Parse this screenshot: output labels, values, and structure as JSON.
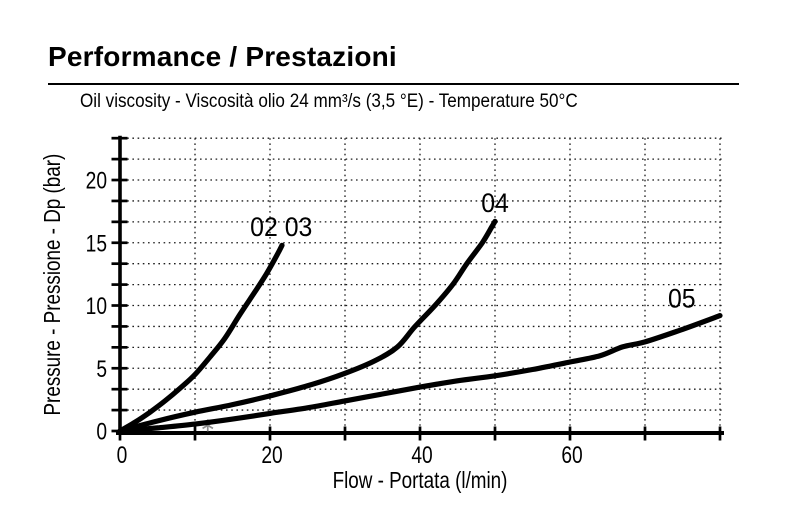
{
  "header": {
    "title": "Performance / Prestazioni",
    "subtitle": "Oil viscosity - Viscosità olio 24 mm³/s (3,5 °E) - Temperature 50°C"
  },
  "chart_data": {
    "type": "line",
    "title": "Performance / Prestazioni",
    "subtitle": "Oil viscosity - Viscosità olio 24 mm³/s (3,5 °E) - Temperature 50°C",
    "xlabel": "Flow - Portata (l/min)",
    "ylabel": "Pressure - Pressione - Dp (bar)",
    "xlim": [
      0,
      80
    ],
    "ylim": [
      0,
      23.333
    ],
    "x_major_ticks": [
      0,
      20,
      40,
      60
    ],
    "x_minor_step": 10,
    "y_major_ticks": [
      0,
      5,
      10,
      15,
      20
    ],
    "y_minor_step": 1.6667,
    "grid": "dotted",
    "grid_color": "#1c1c1c",
    "line_color": "#000000",
    "series": [
      {
        "name": "02 03",
        "label": "02 03",
        "label_pos": [
          21.5,
          16.3
        ],
        "points": [
          [
            0,
            0
          ],
          [
            2,
            0.7
          ],
          [
            4,
            1.5
          ],
          [
            6,
            2.4
          ],
          [
            8,
            3.4
          ],
          [
            10,
            4.5
          ],
          [
            12,
            5.9
          ],
          [
            14,
            7.4
          ],
          [
            16,
            9.3
          ],
          [
            18,
            11.1
          ],
          [
            19.5,
            12.5
          ],
          [
            21,
            14.1
          ],
          [
            21.6,
            14.8
          ]
        ]
      },
      {
        "name": "04",
        "label": "04",
        "label_pos": [
          50.0,
          18.2
        ],
        "points": [
          [
            0,
            0
          ],
          [
            5,
            0.8
          ],
          [
            10,
            1.5
          ],
          [
            15,
            2.1
          ],
          [
            20,
            2.8
          ],
          [
            25,
            3.6
          ],
          [
            30,
            4.6
          ],
          [
            34,
            5.6
          ],
          [
            37,
            6.7
          ],
          [
            39.3,
            8.3
          ],
          [
            42,
            10.0
          ],
          [
            44.4,
            11.7
          ],
          [
            46.2,
            13.3
          ],
          [
            48.3,
            15.0
          ],
          [
            49.6,
            16.3
          ],
          [
            50,
            16.7
          ]
        ]
      },
      {
        "name": "05",
        "label": "05",
        "label_pos": [
          74.9,
          10.6
        ],
        "points": [
          [
            0,
            0
          ],
          [
            5,
            0.25
          ],
          [
            10,
            0.55
          ],
          [
            15,
            0.95
          ],
          [
            20,
            1.4
          ],
          [
            25,
            1.85
          ],
          [
            30,
            2.4
          ],
          [
            35,
            2.95
          ],
          [
            40,
            3.5
          ],
          [
            45,
            4.0
          ],
          [
            50,
            4.4
          ],
          [
            55,
            4.9
          ],
          [
            60,
            5.5
          ],
          [
            64,
            6.0
          ],
          [
            67,
            6.7
          ],
          [
            70,
            7.1
          ],
          [
            75,
            8.1
          ],
          [
            80,
            9.2
          ]
        ]
      }
    ],
    "marker": {
      "shape": "asterisk",
      "color": "#8f8f8f",
      "pos": [
        11.7,
        0.45
      ]
    }
  }
}
